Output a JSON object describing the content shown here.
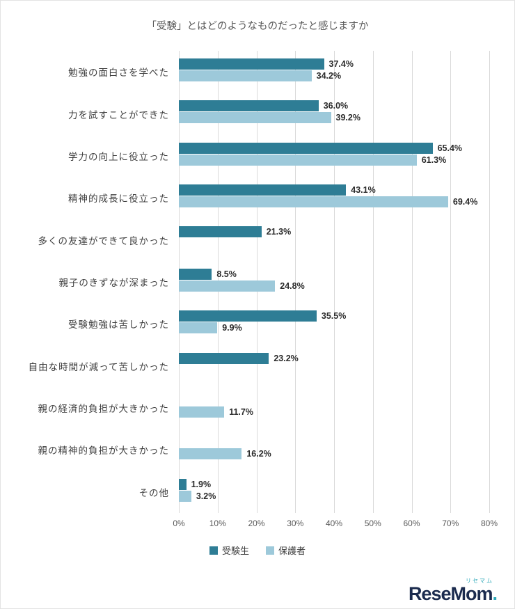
{
  "title": "「受験」とはどのようなものだったと感じますか",
  "chart_data": {
    "type": "bar",
    "orientation": "horizontal",
    "title": "「受験」とはどのようなものだったと感じますか",
    "categories": [
      "勉強の面白さを学べた",
      "力を試すことができた",
      "学力の向上に役立った",
      "精神的成長に役立った",
      "多くの友達ができて良かった",
      "親子のきずなが深まった",
      "受験勉強は苦しかった",
      "自由な時間が減って苦しかった",
      "親の経済的負担が大きかった",
      "親の精神的負担が大きかった",
      "その他"
    ],
    "series": [
      {
        "name": "受験生",
        "color": "#2e7d95",
        "values": [
          37.4,
          36.0,
          65.4,
          43.1,
          21.3,
          8.5,
          35.5,
          23.2,
          null,
          null,
          1.9
        ]
      },
      {
        "name": "保護者",
        "color": "#9dc9da",
        "values": [
          34.2,
          39.2,
          61.3,
          69.4,
          null,
          24.8,
          9.9,
          null,
          11.7,
          16.2,
          3.2
        ]
      }
    ],
    "xlim": [
      0,
      80
    ],
    "x_ticks": [
      "0%",
      "10%",
      "20%",
      "30%",
      "40%",
      "50%",
      "60%",
      "70%",
      "80%"
    ],
    "value_label_format": "0.0%",
    "grid": "vertical",
    "legend_position": "bottom"
  },
  "legend": {
    "items": [
      {
        "label": "受験生",
        "color": "#2e7d95"
      },
      {
        "label": "保護者",
        "color": "#9dc9da"
      }
    ]
  },
  "logo": {
    "kana": "リセマム",
    "text": "ReseMom",
    "dot": "."
  }
}
